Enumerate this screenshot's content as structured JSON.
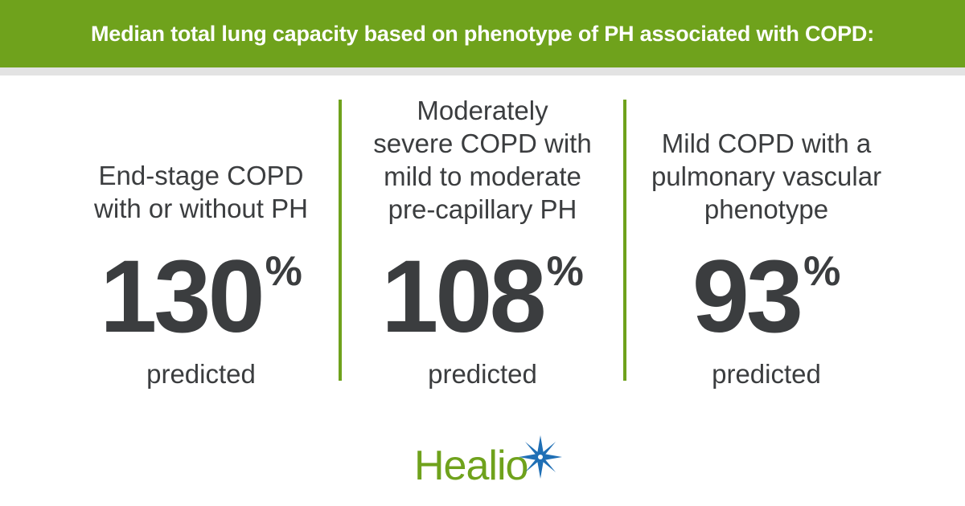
{
  "header": {
    "title": "Median total lung capacity based on phenotype of PH associated with COPD:"
  },
  "columns": [
    {
      "label_lines": [
        "End-stage COPD",
        "with or without PH"
      ],
      "value": "130",
      "unit": "%",
      "sub": "predicted"
    },
    {
      "label_lines": [
        "Moderately",
        "severe COPD with",
        "mild to moderate",
        "pre-capillary PH"
      ],
      "value": "108",
      "unit": "%",
      "sub": "predicted"
    },
    {
      "label_lines": [
        "Mild COPD with a",
        "pulmonary vascular",
        "phenotype"
      ],
      "value": "93",
      "unit": "%",
      "sub": "predicted"
    }
  ],
  "brand": {
    "name": "Healio",
    "primary_color": "#6fa21c",
    "star_color": "#1f6fb5",
    "star_icon": "star-burst-icon"
  }
}
